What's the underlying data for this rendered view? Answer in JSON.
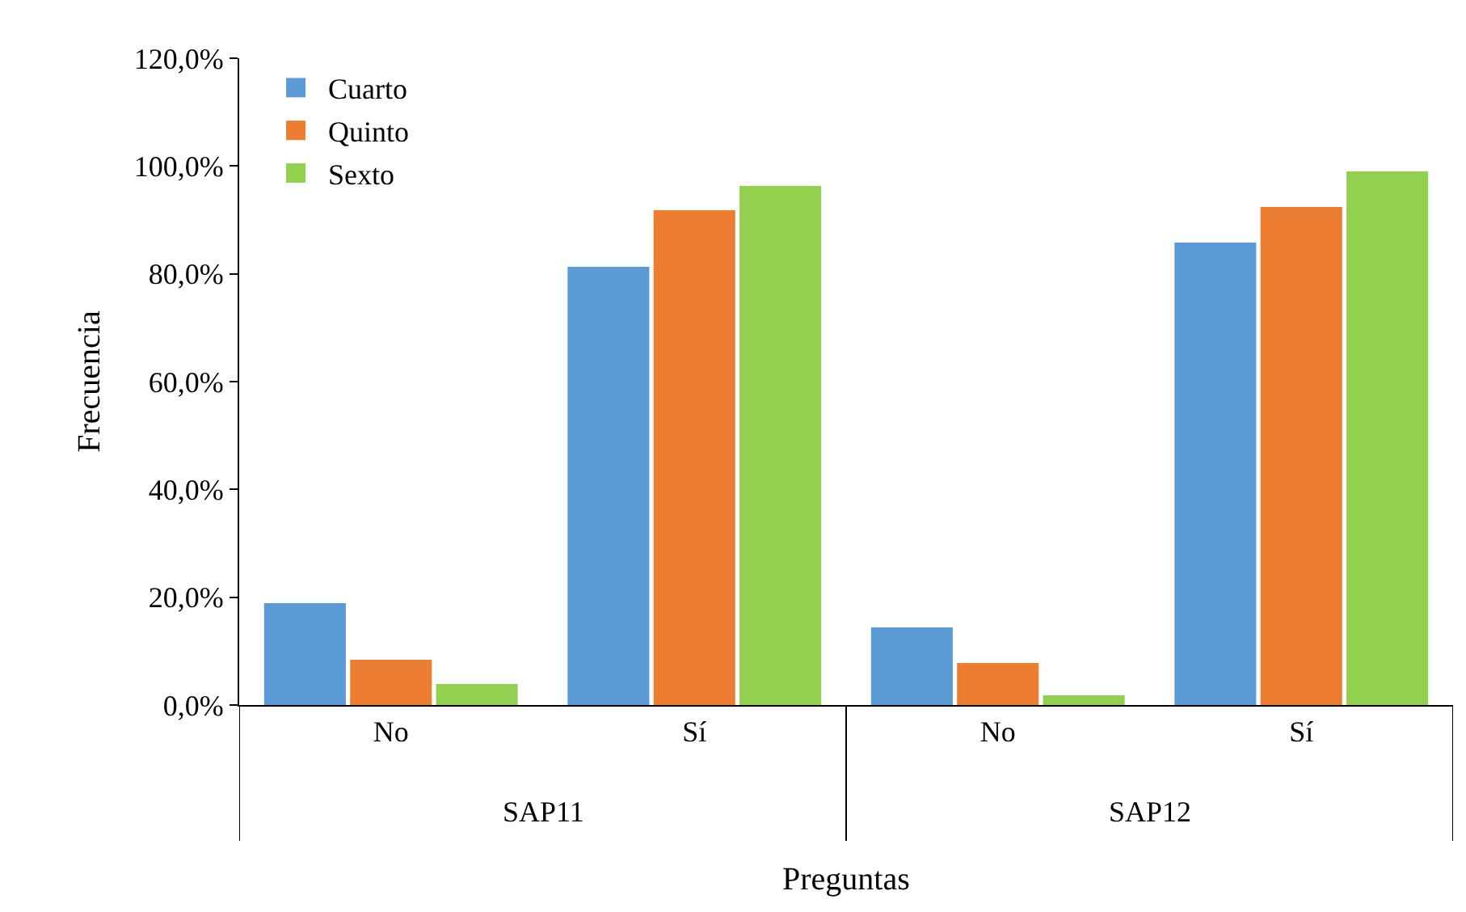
{
  "chart_data": {
    "type": "bar",
    "xlabel": "Preguntas",
    "ylabel": "Frecuencia",
    "categories": [
      "No",
      "Sí",
      "No",
      "Sí"
    ],
    "series": [
      {
        "name": "Cuarto",
        "color": "#5b9bd5",
        "values": [
          18.9,
          81.3,
          14.4,
          85.8
        ]
      },
      {
        "name": "Quinto",
        "color": "#ed7d31",
        "values": [
          8.4,
          91.8,
          7.8,
          92.4
        ]
      },
      {
        "name": "Sexto",
        "color": "#92d050",
        "values": [
          3.9,
          96.3,
          1.8,
          99.0
        ]
      }
    ],
    "annotations": [
      "SAP11",
      "SAP12"
    ],
    "ylim": [
      0,
      120
    ],
    "yticks": [
      {
        "value": 0,
        "label": "0,0%"
      },
      {
        "value": 20,
        "label": "20,0%"
      },
      {
        "value": 40,
        "label": "40,0%"
      },
      {
        "value": 60,
        "label": "60,0%"
      },
      {
        "value": 80,
        "label": "80,0%"
      },
      {
        "value": 100,
        "label": "100,0%"
      },
      {
        "value": 120,
        "label": "120,0%"
      }
    ],
    "legend": "top left"
  }
}
